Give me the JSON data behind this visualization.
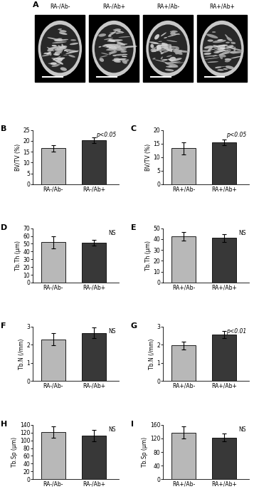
{
  "image_labels": [
    "RA-/Ab-",
    "RA-/Ab+",
    "RA+/Ab-",
    "RA+/Ab+"
  ],
  "panel_B": {
    "label": "B",
    "ylabel": "BV/TV (%)",
    "categories": [
      "RA-/Ab-",
      "RA-/Ab+"
    ],
    "values": [
      16.5,
      20.3
    ],
    "errors": [
      1.5,
      1.2
    ],
    "ylim": [
      0,
      25
    ],
    "yticks": [
      0,
      5,
      10,
      15,
      20,
      25
    ],
    "sig_text": "p<0.05",
    "sig_italic": true,
    "colors": [
      "#b8b8b8",
      "#383838"
    ]
  },
  "panel_C": {
    "label": "C",
    "ylabel": "BV/TV (%)",
    "categories": [
      "RA+/Ab-",
      "RA+/Ab+"
    ],
    "values": [
      13.2,
      15.5
    ],
    "errors": [
      2.2,
      1.0
    ],
    "ylim": [
      0,
      20
    ],
    "yticks": [
      0,
      5,
      10,
      15,
      20
    ],
    "sig_text": "p<0.05",
    "sig_italic": true,
    "colors": [
      "#b8b8b8",
      "#383838"
    ]
  },
  "panel_D": {
    "label": "D",
    "ylabel": "Tb.Th (μm)",
    "categories": [
      "RA-/Ab-",
      "RA-/Ab+"
    ],
    "values": [
      52.0,
      51.5
    ],
    "errors": [
      8.0,
      3.5
    ],
    "ylim": [
      0,
      70
    ],
    "yticks": [
      0,
      10,
      20,
      30,
      40,
      50,
      60,
      70
    ],
    "sig_text": "NS",
    "sig_italic": false,
    "colors": [
      "#b8b8b8",
      "#383838"
    ]
  },
  "panel_E": {
    "label": "E",
    "ylabel": "Tb.Th (μm)",
    "categories": [
      "RA+/Ab-",
      "RA+/Ab+"
    ],
    "values": [
      42.5,
      41.0
    ],
    "errors": [
      4.0,
      3.5
    ],
    "ylim": [
      0,
      50
    ],
    "yticks": [
      0,
      10,
      20,
      30,
      40,
      50
    ],
    "sig_text": "NS",
    "sig_italic": false,
    "colors": [
      "#b8b8b8",
      "#383838"
    ]
  },
  "panel_F": {
    "label": "F",
    "ylabel": "Tb.N (/mm)",
    "categories": [
      "RA-/Ab-",
      "RA-/Ab+"
    ],
    "values": [
      2.3,
      2.65
    ],
    "errors": [
      0.35,
      0.3
    ],
    "ylim": [
      0,
      3
    ],
    "yticks": [
      0,
      1,
      2,
      3
    ],
    "sig_text": "NS",
    "sig_italic": false,
    "colors": [
      "#b8b8b8",
      "#383838"
    ]
  },
  "panel_G": {
    "label": "G",
    "ylabel": "Tb.N (/mm)",
    "categories": [
      "RA+/Ab-",
      "RA+/Ab+"
    ],
    "values": [
      1.95,
      2.55
    ],
    "errors": [
      0.2,
      0.2
    ],
    "ylim": [
      0,
      3
    ],
    "yticks": [
      0,
      1,
      2,
      3
    ],
    "sig_text": "p<0.01",
    "sig_italic": true,
    "colors": [
      "#b8b8b8",
      "#383838"
    ]
  },
  "panel_H": {
    "label": "H",
    "ylabel": "Tb.Sp (μm)",
    "categories": [
      "RA-/Ab-",
      "RA-/Ab+"
    ],
    "values": [
      122.0,
      112.0
    ],
    "errors": [
      15.0,
      15.0
    ],
    "ylim": [
      0,
      140
    ],
    "yticks": [
      0,
      20,
      40,
      60,
      80,
      100,
      120,
      140
    ],
    "sig_text": "NS",
    "sig_italic": false,
    "colors": [
      "#b8b8b8",
      "#383838"
    ]
  },
  "panel_I": {
    "label": "I",
    "ylabel": "Tb.Sp (μm)",
    "categories": [
      "RA+/Ab-",
      "RA+/Ab+"
    ],
    "values": [
      137.0,
      123.0
    ],
    "errors": [
      18.0,
      12.0
    ],
    "ylim": [
      0,
      160
    ],
    "yticks": [
      0,
      40,
      80,
      120,
      160
    ],
    "sig_text": "NS",
    "sig_italic": false,
    "colors": [
      "#b8b8b8",
      "#383838"
    ]
  }
}
